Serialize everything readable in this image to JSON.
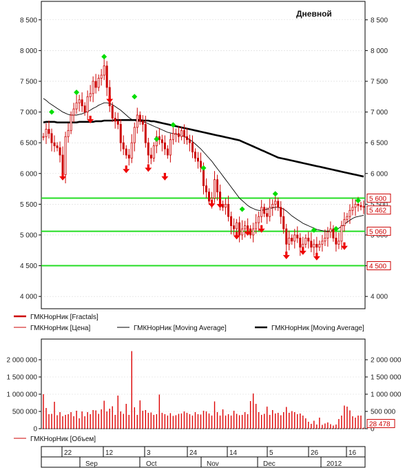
{
  "chart_data": [
    {
      "type": "candlestick",
      "title": "Дневной",
      "ylim": [
        3800,
        8800
      ],
      "yticks": [
        4000,
        4500,
        5000,
        5500,
        6000,
        6500,
        7000,
        7500,
        8000,
        8500
      ],
      "ytick_labels": [
        "4 000",
        "4 500",
        "5 000",
        "5 500",
        "6 000",
        "6 500",
        "7 000",
        "7 500",
        "8 000",
        "8 500"
      ],
      "horizontal_levels": [
        {
          "value": 5600,
          "label": "5 600"
        },
        {
          "value": 5060,
          "label": "5 060"
        },
        {
          "value": 4500,
          "label": "4 500"
        }
      ],
      "last_price": {
        "value": 5462,
        "label": "5 462"
      },
      "series_legend": [
        {
          "name": "ГМКНорНик [Fractals]",
          "style": "red-thick"
        },
        {
          "name": "ГМКНорНик [Цена]",
          "style": "red-thin"
        },
        {
          "name": "ГМКНорНик [Moving Average]",
          "style": "black-thin"
        },
        {
          "name": "ГМКНорНик [Moving Average]",
          "style": "black-thick"
        }
      ],
      "close": [
        6600,
        6720,
        6650,
        6500,
        6450,
        6420,
        6300,
        5980,
        6600,
        6700,
        6950,
        7050,
        7150,
        7200,
        7100,
        7000,
        7250,
        7300,
        7500,
        7400,
        7550,
        7600,
        7750,
        7400,
        7100,
        6900,
        6850,
        6800,
        6500,
        6400,
        6300,
        6250,
        6500,
        6750,
        6950,
        6850,
        6800,
        6500,
        6300,
        6250,
        6450,
        6600,
        6550,
        6500,
        6400,
        6300,
        6550,
        6650,
        6650,
        6600,
        6700,
        6600,
        6550,
        6500,
        6350,
        6250,
        6200,
        6100,
        5800,
        5700,
        5550,
        5600,
        5900,
        5700,
        5500,
        5450,
        5500,
        5300,
        5150,
        5100,
        5200,
        5000,
        5100,
        5150,
        5100,
        5000,
        5100,
        5200,
        5300,
        5450,
        5350,
        5300,
        5450,
        5500,
        5550,
        5450,
        5300,
        5100,
        4850,
        4950,
        4900,
        5000,
        4950,
        4800,
        4850,
        4950,
        4900,
        4800,
        4850,
        4800,
        4850,
        4900,
        4950,
        5050,
        5100,
        4950,
        4850,
        4900,
        5150,
        5250,
        5300,
        5400,
        5450,
        5500,
        5480,
        5460,
        5462
      ],
      "ma_fast": [
        7220,
        7190,
        7150,
        7120,
        7090,
        7060,
        7030,
        7000,
        6980,
        6960,
        6950,
        6950,
        6950,
        6960,
        6970,
        6990,
        7010,
        7030,
        7060,
        7080,
        7110,
        7130,
        7150,
        7150,
        7140,
        7120,
        7090,
        7060,
        7030,
        6990,
        6950,
        6910,
        6880,
        6860,
        6850,
        6850,
        6840,
        6830,
        6810,
        6790,
        6770,
        6750,
        6730,
        6710,
        6690,
        6670,
        6660,
        6650,
        6640,
        6630,
        6620,
        6600,
        6580,
        6550,
        6520,
        6480,
        6440,
        6400,
        6350,
        6300,
        6250,
        6200,
        6140,
        6080,
        6020,
        5960,
        5900,
        5840,
        5780,
        5720,
        5660,
        5600,
        5560,
        5520,
        5480,
        5450,
        5430,
        5410,
        5400,
        5400,
        5410,
        5420,
        5430,
        5440,
        5450,
        5450,
        5440,
        5420,
        5390,
        5350,
        5310,
        5280,
        5250,
        5220,
        5190,
        5170,
        5150,
        5130,
        5110,
        5090,
        5080,
        5070,
        5060,
        5060,
        5070,
        5080,
        5090,
        5110,
        5140,
        5170,
        5210,
        5240,
        5270,
        5290,
        5300,
        5310,
        5320
      ],
      "ma_slow": [
        6830,
        6840,
        6840,
        6840,
        6840,
        6830,
        6830,
        6830,
        6830,
        6830,
        6830,
        6830,
        6830,
        6840,
        6840,
        6840,
        6840,
        6840,
        6840,
        6850,
        6850,
        6850,
        6860,
        6860,
        6860,
        6860,
        6870,
        6870,
        6870,
        6870,
        6870,
        6870,
        6870,
        6870,
        6870,
        6870,
        6860,
        6860,
        6860,
        6850,
        6850,
        6840,
        6830,
        6820,
        6810,
        6800,
        6790,
        6780,
        6770,
        6760,
        6750,
        6740,
        6730,
        6720,
        6710,
        6700,
        6690,
        6680,
        6670,
        6660,
        6650,
        6640,
        6630,
        6620,
        6610,
        6600,
        6590,
        6580,
        6570,
        6560,
        6550,
        6540,
        6520,
        6500,
        6480,
        6460,
        6440,
        6420,
        6400,
        6380,
        6360,
        6340,
        6320,
        6300,
        6280,
        6260,
        6250,
        6240,
        6230,
        6220,
        6210,
        6200,
        6190,
        6180,
        6170,
        6160,
        6150,
        6140,
        6130,
        6120,
        6110,
        6100,
        6090,
        6080,
        6070,
        6060,
        6050,
        6040,
        6030,
        6020,
        6010,
        6000,
        5990,
        5980,
        5970,
        5960,
        5950
      ],
      "fractals_up": [
        {
          "i": 3,
          "value": 7000
        },
        {
          "i": 12,
          "value": 7320
        },
        {
          "i": 22,
          "value": 7900
        },
        {
          "i": 33,
          "value": 7250
        },
        {
          "i": 41,
          "value": 6560
        },
        {
          "i": 47,
          "value": 6790
        },
        {
          "i": 58,
          "value": 6090
        },
        {
          "i": 72,
          "value": 5420
        },
        {
          "i": 84,
          "value": 5670
        },
        {
          "i": 98,
          "value": 5080
        },
        {
          "i": 106,
          "value": 5100
        },
        {
          "i": 114,
          "value": 5560
        }
      ],
      "fractals_down": [
        {
          "i": 7,
          "value": 5920
        },
        {
          "i": 17,
          "value": 6850
        },
        {
          "i": 24,
          "value": 7180
        },
        {
          "i": 30,
          "value": 6040
        },
        {
          "i": 38,
          "value": 6060
        },
        {
          "i": 44,
          "value": 5920
        },
        {
          "i": 61,
          "value": 5480
        },
        {
          "i": 64,
          "value": 5470
        },
        {
          "i": 70,
          "value": 4960
        },
        {
          "i": 74,
          "value": 5020
        },
        {
          "i": 79,
          "value": 5070
        },
        {
          "i": 88,
          "value": 4640
        },
        {
          "i": 94,
          "value": 4710
        },
        {
          "i": 99,
          "value": 4620
        },
        {
          "i": 109,
          "value": 4790
        }
      ]
    },
    {
      "type": "bar",
      "ylim": [
        0,
        2600000
      ],
      "yticks": [
        0,
        500000,
        1000000,
        1500000,
        2000000
      ],
      "ytick_labels": [
        "0",
        "500 000",
        "1 000 000",
        "1 500 000",
        "2 000 000"
      ],
      "legend": "ГМКНорНик [Объем]",
      "last_value": {
        "value": 28478,
        "label": "28 478"
      },
      "values": [
        1000000,
        600000,
        420000,
        430000,
        780000,
        390000,
        480000,
        360000,
        400000,
        420000,
        480000,
        360000,
        520000,
        300000,
        500000,
        360000,
        480000,
        420000,
        540000,
        530000,
        430000,
        560000,
        810000,
        500000,
        580000,
        650000,
        400000,
        960000,
        500000,
        430000,
        720000,
        400000,
        2250000,
        620000,
        400000,
        820000,
        520000,
        540000,
        460000,
        470000,
        400000,
        420000,
        990000,
        460000,
        420000,
        380000,
        450000,
        370000,
        390000,
        430000,
        440000,
        500000,
        460000,
        420000,
        380000,
        480000,
        420000,
        410000,
        520000,
        500000,
        440000,
        380000,
        790000,
        480000,
        380000,
        560000,
        380000,
        420000,
        380000,
        520000,
        430000,
        390000,
        400000,
        480000,
        420000,
        800000,
        1020000,
        720000,
        480000,
        400000,
        430000,
        640000,
        400000,
        540000,
        440000,
        460000,
        390000,
        480000,
        630000,
        460000,
        510000,
        480000,
        420000,
        440000,
        380000,
        300000,
        200000,
        140000,
        230000,
        120000,
        320000,
        110000,
        150000,
        180000,
        130000,
        90000,
        120000,
        280000,
        380000,
        670000,
        640000,
        530000,
        360000,
        320000,
        380000,
        380000,
        28478
      ]
    }
  ],
  "time_axis": {
    "day_labels": [
      "22",
      "12",
      "3",
      "24",
      "14",
      "5",
      "26",
      "16"
    ],
    "month_labels": [
      "Sep",
      "Oct",
      "Nov",
      "Dec",
      "2012"
    ]
  }
}
